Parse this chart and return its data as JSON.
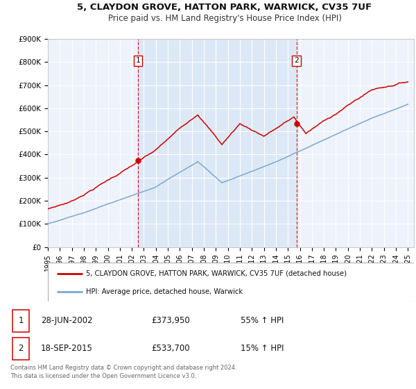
{
  "title": "5, CLAYDON GROVE, HATTON PARK, WARWICK, CV35 7UF",
  "subtitle": "Price paid vs. HM Land Registry's House Price Index (HPI)",
  "red_line_label": "5, CLAYDON GROVE, HATTON PARK, WARWICK, CV35 7UF (detached house)",
  "blue_line_label": "HPI: Average price, detached house, Warwick",
  "event1_date": "28-JUN-2002",
  "event1_price": "£373,950",
  "event1_hpi": "55% ↑ HPI",
  "event1_year": 2002.49,
  "event1_value": 373950,
  "event2_date": "18-SEP-2015",
  "event2_price": "£533,700",
  "event2_hpi": "15% ↑ HPI",
  "event2_year": 2015.71,
  "event2_value": 533700,
  "ylim": [
    0,
    900000
  ],
  "yticks": [
    0,
    100000,
    200000,
    300000,
    400000,
    500000,
    600000,
    700000,
    800000,
    900000
  ],
  "ytick_labels": [
    "£0",
    "£100K",
    "£200K",
    "£300K",
    "£400K",
    "£500K",
    "£600K",
    "£700K",
    "£800K",
    "£900K"
  ],
  "xlim_start": 1995.0,
  "xlim_end": 2025.5,
  "xticks": [
    1995,
    1996,
    1997,
    1998,
    1999,
    2000,
    2001,
    2002,
    2003,
    2004,
    2005,
    2006,
    2007,
    2008,
    2009,
    2010,
    2011,
    2012,
    2013,
    2014,
    2015,
    2016,
    2017,
    2018,
    2019,
    2020,
    2021,
    2022,
    2023,
    2024,
    2025
  ],
  "red_color": "#cc0000",
  "blue_color": "#7aa8d2",
  "shade_color": "#dce8f5",
  "background_color": "#ffffff",
  "plot_bg_color": "#eef2fb",
  "grid_color": "#ffffff",
  "footer": "Contains HM Land Registry data © Crown copyright and database right 2024.\nThis data is licensed under the Open Government Licence v3.0."
}
